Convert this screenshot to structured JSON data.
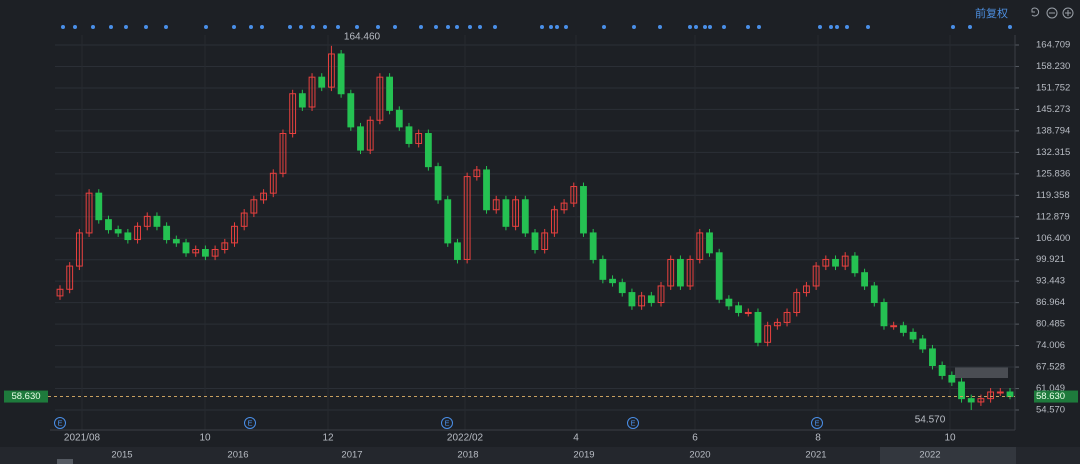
{
  "chart_data": {
    "type": "candlestick",
    "toolbar_label": "前复权",
    "up_color": "#e8413f",
    "down_color": "#25c152",
    "grid": true,
    "ylim": [
      54.57,
      164.709
    ],
    "yticks": [
      {
        "value": 54.57,
        "label": "54.570"
      },
      61.049,
      67.528,
      74.006,
      80.485,
      86.964,
      93.443,
      99.921,
      {
        "value": 106.4,
        "label": "106.400"
      },
      112.879,
      119.358,
      125.836,
      132.315,
      138.794,
      145.273,
      151.752,
      {
        "value": 158.23,
        "label": "158.230"
      },
      164.709
    ],
    "last_price": {
      "value": 58.63,
      "label": "58.630"
    },
    "max_label": {
      "value": 164.46,
      "label": "164.460"
    },
    "min_label": {
      "value": 54.57,
      "label": "54.570"
    },
    "x_labels": [
      "2021/08",
      "10",
      "12",
      "2022/02",
      "4",
      "6",
      "8",
      "10"
    ],
    "year_labels": [
      "2015",
      "2016",
      "2017",
      "2018",
      "2019",
      "2020",
      "2021",
      "2022"
    ],
    "event_markers": [
      "E",
      "E",
      "E",
      "E",
      "E"
    ],
    "candles": [
      [
        89,
        92.2,
        87.8,
        91
      ],
      [
        91,
        99.2,
        89.8,
        98
      ],
      [
        98,
        109.2,
        96.8,
        108
      ],
      [
        108,
        121.2,
        106.8,
        120
      ],
      [
        120,
        121.2,
        110.8,
        112
      ],
      [
        112,
        113.2,
        107.8,
        109
      ],
      [
        109,
        110.2,
        106.8,
        108
      ],
      [
        108,
        109.2,
        104.8,
        106
      ],
      [
        106,
        111.2,
        104.8,
        110
      ],
      [
        110,
        114.2,
        108.8,
        113
      ],
      [
        113,
        114.2,
        108.8,
        110
      ],
      [
        110,
        111.2,
        104.8,
        106
      ],
      [
        106,
        107.2,
        103.8,
        105
      ],
      [
        105,
        106.2,
        100.8,
        102
      ],
      [
        102,
        104.2,
        100.8,
        103
      ],
      [
        103,
        104.2,
        99.8,
        101
      ],
      [
        101,
        104.2,
        99.8,
        103
      ],
      [
        103,
        106.2,
        101.8,
        105
      ],
      [
        105,
        111.2,
        103.8,
        110
      ],
      [
        110,
        115.2,
        108.8,
        114
      ],
      [
        114,
        119.2,
        112.8,
        118
      ],
      [
        118,
        121.2,
        116.8,
        120
      ],
      [
        120,
        127.2,
        118.8,
        126
      ],
      [
        126,
        139.2,
        124.8,
        138
      ],
      [
        138,
        151.2,
        136.8,
        150
      ],
      [
        150,
        151.2,
        144.8,
        146
      ],
      [
        146,
        156.2,
        144.8,
        155
      ],
      [
        155,
        156.2,
        150.8,
        152
      ],
      [
        152,
        164.46,
        150.8,
        162
      ],
      [
        162,
        163.2,
        148.8,
        150
      ],
      [
        150,
        151.2,
        138.8,
        140
      ],
      [
        140,
        141.2,
        131.8,
        133
      ],
      [
        133,
        143.2,
        131.8,
        142
      ],
      [
        142,
        156.2,
        140.8,
        155
      ],
      [
        155,
        156.2,
        143.8,
        145
      ],
      [
        145,
        146.2,
        138.8,
        140
      ],
      [
        140,
        141.2,
        133.8,
        135
      ],
      [
        135,
        139.2,
        133.8,
        138
      ],
      [
        138,
        139.2,
        126.8,
        128
      ],
      [
        128,
        129.2,
        116.8,
        118
      ],
      [
        118,
        119.2,
        103.8,
        105
      ],
      [
        105,
        106.2,
        98.8,
        100
      ],
      [
        100,
        126.2,
        98.8,
        125
      ],
      [
        125,
        128.2,
        123.8,
        127
      ],
      [
        127,
        128.2,
        113.8,
        115
      ],
      [
        115,
        119.2,
        113.8,
        118
      ],
      [
        118,
        119.2,
        108.8,
        110
      ],
      [
        110,
        119.2,
        108.8,
        118
      ],
      [
        118,
        119.2,
        106.8,
        108
      ],
      [
        108,
        109.2,
        101.8,
        103
      ],
      [
        103,
        109.2,
        101.8,
        108
      ],
      [
        108,
        116.2,
        106.8,
        115
      ],
      [
        115,
        118.2,
        113.8,
        117
      ],
      [
        117,
        123.2,
        115.8,
        122
      ],
      [
        122,
        123.2,
        106.8,
        108
      ],
      [
        108,
        109.2,
        98.8,
        100
      ],
      [
        100,
        101.2,
        92.8,
        94
      ],
      [
        94,
        95.2,
        91.8,
        93
      ],
      [
        93,
        94.2,
        88.8,
        90
      ],
      [
        90,
        91.2,
        84.8,
        86
      ],
      [
        86,
        90.2,
        84.8,
        89
      ],
      [
        89,
        90.2,
        85.8,
        87
      ],
      [
        87,
        93.2,
        85.8,
        92
      ],
      [
        92,
        101.2,
        90.8,
        100
      ],
      [
        100,
        101.2,
        90.8,
        92
      ],
      [
        92,
        101.2,
        90.8,
        100
      ],
      [
        100,
        109.2,
        98.8,
        108
      ],
      [
        108,
        109.2,
        100.8,
        102
      ],
      [
        102,
        103.2,
        86.8,
        88
      ],
      [
        88,
        89.2,
        84.8,
        86
      ],
      [
        86,
        87.2,
        82.8,
        84
      ],
      [
        84,
        85.2,
        82.8,
        84
      ],
      [
        84,
        85.2,
        73.8,
        75
      ],
      [
        75,
        81.2,
        73.8,
        80
      ],
      [
        80,
        82.2,
        78.8,
        81
      ],
      [
        81,
        85.2,
        79.8,
        84
      ],
      [
        84,
        91.2,
        82.8,
        90
      ],
      [
        90,
        93.2,
        88.8,
        92
      ],
      [
        92,
        99.2,
        90.8,
        98
      ],
      [
        98,
        101.2,
        96.8,
        100
      ],
      [
        100,
        101.2,
        96.8,
        98
      ],
      [
        98,
        102.2,
        96.8,
        101
      ],
      [
        101,
        102.2,
        94.8,
        96
      ],
      [
        96,
        97.2,
        90.8,
        92
      ],
      [
        92,
        93.2,
        85.8,
        87
      ],
      [
        87,
        88.2,
        78.8,
        80
      ],
      [
        80,
        81.2,
        78.8,
        80
      ],
      [
        80,
        81.2,
        76.8,
        78
      ],
      [
        78,
        79.2,
        74.8,
        76
      ],
      [
        76,
        77.2,
        71.8,
        73
      ],
      [
        73,
        74.2,
        66.8,
        68
      ],
      [
        68,
        69.2,
        63.8,
        65
      ],
      [
        65,
        66.2,
        61.8,
        63
      ],
      [
        63,
        64.2,
        56.8,
        58
      ],
      [
        58,
        59.2,
        54.57,
        57
      ],
      [
        57,
        59.2,
        55.8,
        58
      ],
      [
        58,
        61.2,
        56.8,
        60
      ],
      [
        60,
        61.2,
        58.8,
        60
      ],
      [
        60,
        61.2,
        57.8,
        58.63
      ]
    ]
  }
}
